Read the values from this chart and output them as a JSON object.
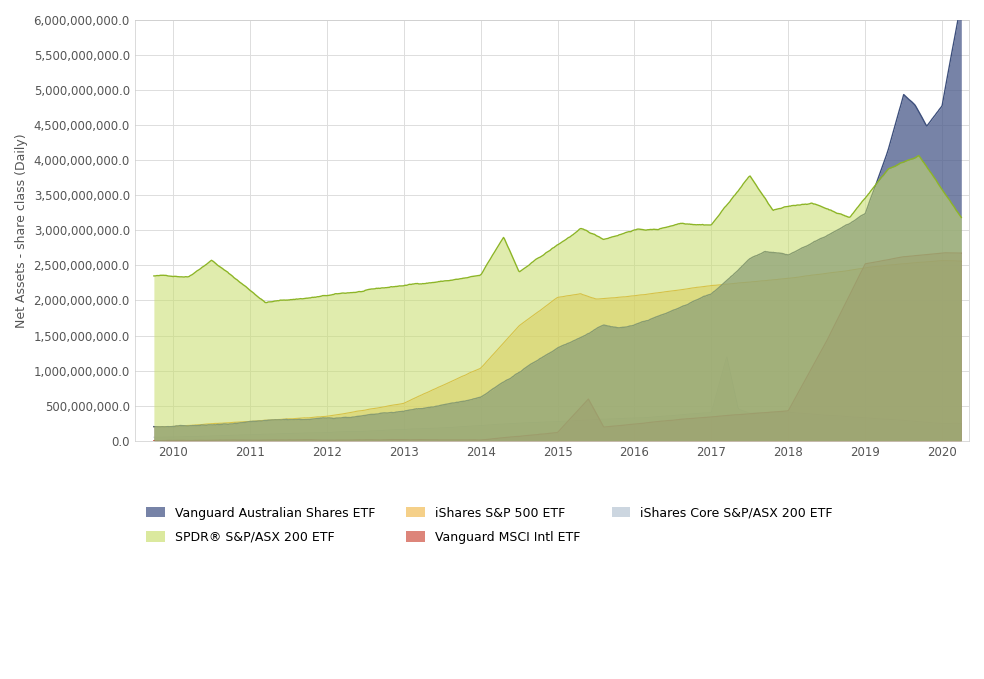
{
  "title": "",
  "ylabel": "Net Assets - share class (Daily)",
  "xlabel": "",
  "ylim": [
    0,
    6000000000
  ],
  "yticks": [
    0,
    500000000,
    1000000000,
    1500000000,
    2000000000,
    2500000000,
    3000000000,
    3500000000,
    4000000000,
    4500000000,
    5000000000,
    5500000000,
    6000000000
  ],
  "xlim_start": 2009.5,
  "xlim_end": 2020.35,
  "xtick_years": [
    2010,
    2011,
    2012,
    2013,
    2014,
    2015,
    2016,
    2017,
    2018,
    2019,
    2020
  ],
  "series": {
    "vanguard_aus": {
      "label": "Vanguard Australian Shares ETF",
      "line_color": "#3d4f7c",
      "fill_color": "#4a5a8a",
      "fill_alpha": 0.75
    },
    "spdr": {
      "label": "SPDR® S&P/ASX 200 ETF",
      "line_color": "#8db526",
      "fill_color": "#c8de6a",
      "fill_alpha": 0.55
    },
    "ishares_sp500": {
      "label": "iShares S&P 500 ETF",
      "line_color": "#e8a020",
      "fill_color": "#f0b84a",
      "fill_alpha": 0.55
    },
    "vanguard_msci": {
      "label": "Vanguard MSCI Intl ETF",
      "line_color": "#cc3322",
      "fill_color": "#cc4433",
      "fill_alpha": 0.55
    },
    "ishares_core": {
      "label": "iShares Core S&P/ASX 200 ETF",
      "line_color": "#8899bb",
      "fill_color": "#aabbcc",
      "fill_alpha": 0.5
    }
  },
  "background_color": "#ffffff",
  "grid_color": "#dddddd",
  "legend_fontsize": 9,
  "axis_fontsize": 9,
  "tick_fontsize": 8.5
}
